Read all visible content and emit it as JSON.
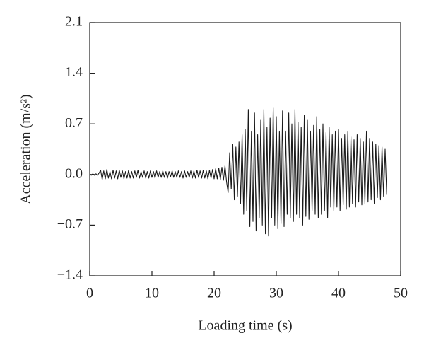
{
  "chart_data": {
    "type": "line",
    "x_label": "Loading time (s)",
    "y_label": "Acceleration (m/s²)",
    "xlim": [
      0,
      50
    ],
    "xticks": [
      0,
      10,
      20,
      30,
      40,
      50
    ],
    "ylim": [
      -1.4,
      2.1
    ],
    "yticks": [
      {
        "value": -1.4,
        "label": "−1.4"
      },
      {
        "value": -0.7,
        "label": "−0.7"
      },
      {
        "value": 0,
        "label": "0.0"
      },
      0.7,
      1.4,
      2.1
    ],
    "grid": false,
    "x": [
      0,
      0.25,
      0.5,
      0.75,
      1,
      1.25,
      1.5,
      1.75,
      2,
      2.25,
      2.5,
      2.75,
      3,
      3.25,
      3.5,
      3.75,
      4,
      4.25,
      4.5,
      4.75,
      5,
      5.25,
      5.5,
      5.75,
      6,
      6.25,
      6.5,
      6.75,
      7,
      7.25,
      7.5,
      7.75,
      8,
      8.25,
      8.5,
      8.75,
      9,
      9.25,
      9.5,
      9.75,
      10,
      10.25,
      10.5,
      10.75,
      11,
      11.25,
      11.5,
      11.75,
      12,
      12.25,
      12.5,
      12.75,
      13,
      13.25,
      13.5,
      13.75,
      14,
      14.25,
      14.5,
      14.75,
      15,
      15.25,
      15.5,
      15.75,
      16,
      16.25,
      16.5,
      16.75,
      17,
      17.25,
      17.5,
      17.75,
      18,
      18.25,
      18.5,
      18.75,
      19,
      19.25,
      19.5,
      19.75,
      20,
      20.25,
      20.5,
      20.75,
      21,
      21.25,
      21.5,
      21.75,
      22,
      22.25,
      22.5,
      22.75,
      23,
      23.25,
      23.5,
      23.75,
      24,
      24.25,
      24.5,
      24.75,
      25,
      25.25,
      25.5,
      25.75,
      26,
      26.25,
      26.5,
      26.75,
      27,
      27.25,
      27.5,
      27.75,
      28,
      28.25,
      28.5,
      28.75,
      29,
      29.25,
      29.5,
      29.75,
      30,
      30.25,
      30.5,
      30.75,
      31,
      31.25,
      31.5,
      31.75,
      32,
      32.25,
      32.5,
      32.75,
      33,
      33.25,
      33.5,
      33.75,
      34,
      34.25,
      34.5,
      34.75,
      35,
      35.25,
      35.5,
      35.75,
      36,
      36.25,
      36.5,
      36.75,
      37,
      37.25,
      37.5,
      37.75,
      38,
      38.25,
      38.5,
      38.75,
      39,
      39.25,
      39.5,
      39.75,
      40,
      40.25,
      40.5,
      40.75,
      41,
      41.25,
      41.5,
      41.75,
      42,
      42.25,
      42.5,
      42.75,
      43,
      43.25,
      43.5,
      43.75,
      44,
      44.25,
      44.5,
      44.75,
      45,
      45.25,
      45.5,
      45.75,
      46,
      46.25,
      46.5,
      46.75,
      47,
      47.25,
      47.5,
      47.75
    ],
    "series": [
      {
        "color": "#1a1a1a",
        "values": [
          0.01,
          -0.01,
          0.01,
          -0.01,
          0.01,
          -0.01,
          0.02,
          0.06,
          -0.07,
          0.05,
          -0.06,
          0.07,
          -0.05,
          0.04,
          -0.06,
          0.06,
          -0.05,
          0.05,
          -0.06,
          0.06,
          -0.04,
          0.05,
          -0.06,
          0.04,
          -0.05,
          0.06,
          -0.05,
          0.04,
          -0.05,
          0.05,
          -0.04,
          0.06,
          -0.05,
          0.04,
          -0.04,
          0.05,
          -0.05,
          0.04,
          -0.05,
          0.05,
          -0.04,
          0.04,
          -0.05,
          0.05,
          -0.04,
          0.04,
          -0.04,
          0.05,
          -0.04,
          0.04,
          -0.05,
          0.04,
          -0.03,
          0.05,
          -0.04,
          0.04,
          -0.04,
          0.05,
          -0.04,
          0.04,
          -0.05,
          0.05,
          -0.04,
          0.04,
          -0.04,
          0.05,
          -0.05,
          0.05,
          -0.05,
          0.06,
          -0.04,
          0.05,
          -0.05,
          0.06,
          -0.05,
          0.05,
          -0.06,
          0.06,
          -0.05,
          0.07,
          -0.06,
          0.08,
          -0.06,
          0.09,
          -0.07,
          0.1,
          -0.08,
          0.12,
          -0.1,
          -0.25,
          0.3,
          -0.2,
          0.42,
          -0.35,
          0.38,
          -0.3,
          0.45,
          -0.4,
          0.55,
          -0.55,
          0.62,
          -0.5,
          0.9,
          -0.72,
          0.6,
          -0.65,
          0.85,
          -0.78,
          0.55,
          -0.6,
          0.75,
          -0.7,
          0.9,
          -0.82,
          0.65,
          -0.85,
          0.78,
          -0.6,
          0.92,
          -0.7,
          0.8,
          -0.75,
          0.6,
          -0.68,
          0.88,
          -0.72,
          0.6,
          -0.55,
          0.85,
          -0.6,
          0.7,
          -0.65,
          0.9,
          -0.55,
          0.72,
          -0.6,
          0.65,
          -0.7,
          0.82,
          -0.58,
          0.75,
          -0.62,
          0.6,
          -0.5,
          0.68,
          -0.55,
          0.8,
          -0.6,
          0.62,
          -0.55,
          0.7,
          -0.5,
          0.58,
          -0.6,
          0.65,
          -0.45,
          0.55,
          -0.5,
          0.6,
          -0.45,
          0.62,
          -0.5,
          0.5,
          -0.42,
          0.55,
          -0.48,
          0.6,
          -0.45,
          0.52,
          -0.4,
          0.48,
          -0.45,
          0.55,
          -0.38,
          0.5,
          -0.42,
          0.45,
          -0.4,
          0.6,
          -0.38,
          0.5,
          -0.35,
          0.45,
          -0.4,
          0.42,
          -0.32,
          0.4,
          -0.35,
          0.38,
          -0.3,
          0.35,
          -0.28
        ]
      }
    ]
  }
}
